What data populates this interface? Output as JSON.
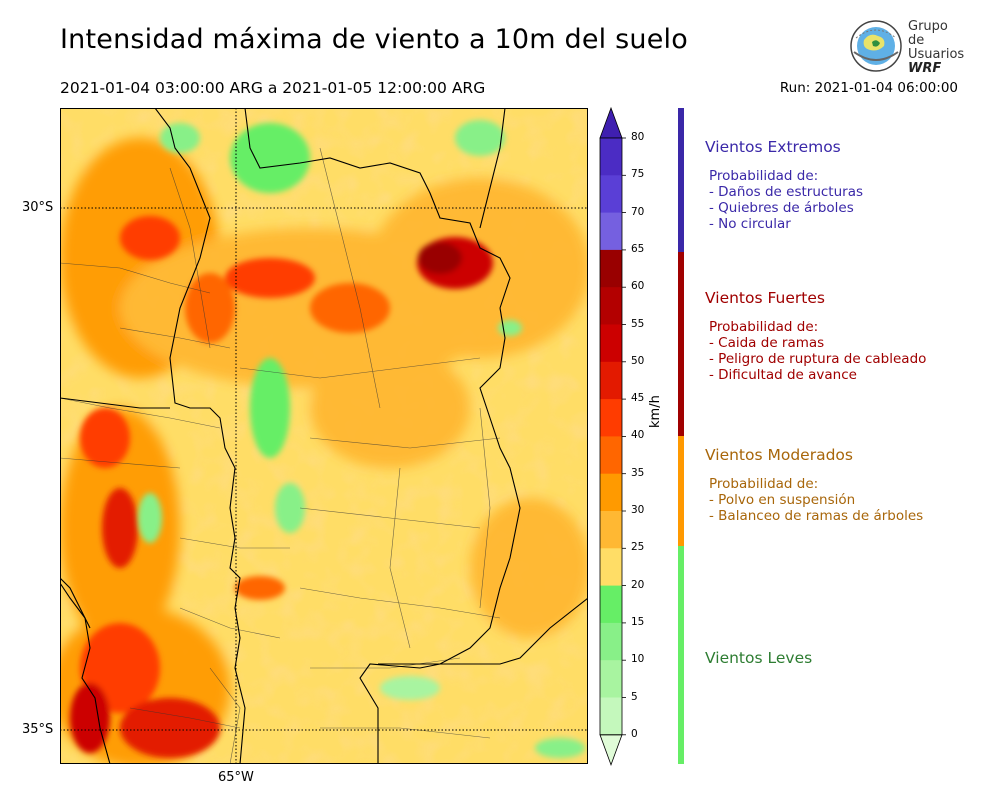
{
  "title": "Intensidad máxima de viento a 10m del suelo",
  "period": "2021-01-04 03:00:00 ARG  a  2021-01-05 12:00:00 ARG",
  "run": "Run: 2021-01-04 06:00:00",
  "logo": {
    "line1": "Grupo de",
    "line2": "Usuarios",
    "line3": "WRF"
  },
  "map": {
    "lat_labels": [
      "30°S",
      "35°S"
    ],
    "lon_labels": [
      "65°W"
    ]
  },
  "colorbar": {
    "unit": "km/h",
    "ticks": [
      "80",
      "75",
      "70",
      "65",
      "60",
      "55",
      "50",
      "45",
      "40",
      "35",
      "30",
      "25",
      "20",
      "15",
      "10",
      "5",
      "0"
    ],
    "colors": [
      "#3f1fb0",
      "#4b2cc4",
      "#5a3fd6",
      "#7560e0",
      "#990000",
      "#b30000",
      "#cc0000",
      "#e31a00",
      "#ff3c00",
      "#ff6600",
      "#ff9a00",
      "#ffb833",
      "#ffdd66",
      "#66ee66",
      "#88f088",
      "#a8f4a0",
      "#c4f8bc",
      "#e0fcd8"
    ]
  },
  "legend": [
    {
      "name": "Vientos Extremos",
      "color": "#3a28a8",
      "bar": "#3a28a8",
      "lines": [
        "Probabilidad de:",
        "- Daños de estructuras",
        "- Quiebres de árboles",
        "- No circular"
      ]
    },
    {
      "name": "Vientos Fuertes",
      "color": "#a00000",
      "bar": "#a00000",
      "lines": [
        "Probabilidad de:",
        "- Caida de ramas",
        "- Peligro de ruptura de cableado",
        "- Dificultad de avance"
      ]
    },
    {
      "name": "Vientos Moderados",
      "color": "#a8660a",
      "bar": "#ff9900",
      "lines": [
        "Probabilidad de:",
        "- Polvo en suspensión",
        "- Balanceo de ramas de árboles"
      ]
    },
    {
      "name": "Vientos Leves",
      "color": "#2e7d32",
      "bar": "#66ee66",
      "lines": []
    }
  ]
}
